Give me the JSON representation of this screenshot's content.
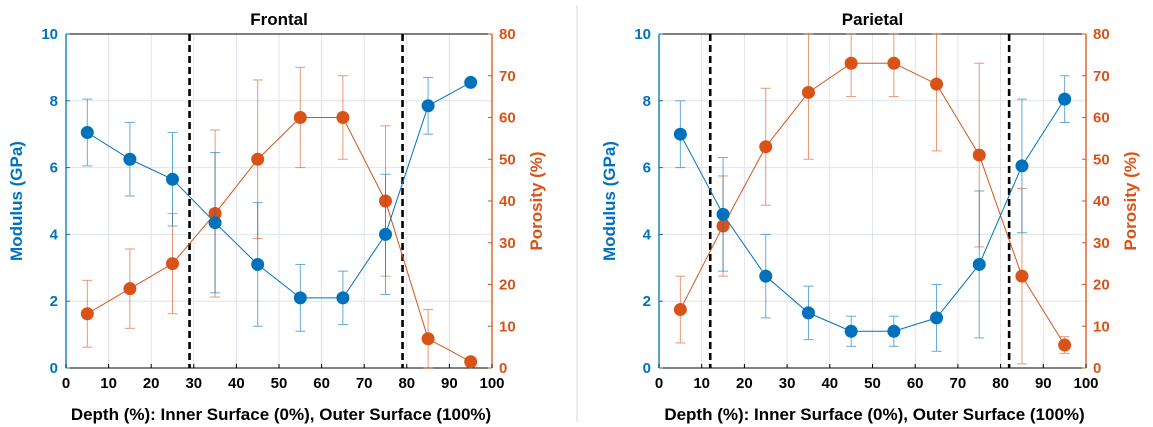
{
  "colors": {
    "modulus": "#0072BD",
    "porosity": "#D95319",
    "axis": "#000000",
    "grid": "#dfe4ea",
    "separator": "#d9d9d9"
  },
  "chart_data": [
    {
      "type": "line",
      "title": "Frontal",
      "xlabel": "Depth (%): Inner Surface (0%), Outer Surface (100%)",
      "ylabel_left": "Modulus (GPa)",
      "ylabel_right": "Porosity (%)",
      "xlim": [
        0,
        100
      ],
      "ylim_left": [
        0,
        10
      ],
      "ylim_right": [
        0,
        80
      ],
      "x_ticks": [
        0,
        10,
        20,
        30,
        40,
        50,
        60,
        70,
        80,
        90,
        100
      ],
      "y_ticks_left": [
        0,
        2,
        4,
        6,
        8,
        10
      ],
      "y_ticks_right": [
        0,
        10,
        20,
        30,
        40,
        50,
        60,
        70,
        80
      ],
      "grid": true,
      "vlines": [
        29,
        79
      ],
      "series": [
        {
          "name": "Modulus (GPa)",
          "axis": "left",
          "x": [
            5,
            15,
            25,
            35,
            45,
            55,
            65,
            75,
            85,
            95
          ],
          "values": [
            7.05,
            6.25,
            5.65,
            4.35,
            3.1,
            2.1,
            2.1,
            4.0,
            7.85,
            8.55
          ],
          "err": [
            1.0,
            1.1,
            1.4,
            2.1,
            1.85,
            1.0,
            0.8,
            1.8,
            0.85,
            0
          ]
        },
        {
          "name": "Porosity (%)",
          "axis": "right",
          "x": [
            5,
            15,
            25,
            35,
            45,
            55,
            65,
            75,
            85,
            95
          ],
          "values": [
            13,
            19,
            25,
            37,
            50,
            60,
            60,
            40,
            7,
            1.5
          ],
          "err": [
            8,
            9.5,
            12,
            20,
            19,
            12,
            10,
            18,
            7,
            0
          ]
        }
      ]
    },
    {
      "type": "line",
      "title": "Parietal",
      "xlabel": "Depth (%): Inner Surface (0%), Outer Surface (100%)",
      "ylabel_left": "Modulus (GPa)",
      "ylabel_right": "Porosity (%)",
      "xlim": [
        0,
        100
      ],
      "ylim_left": [
        0,
        10
      ],
      "ylim_right": [
        0,
        80
      ],
      "x_ticks": [
        0,
        10,
        20,
        30,
        40,
        50,
        60,
        70,
        80,
        90,
        100
      ],
      "y_ticks_left": [
        0,
        2,
        4,
        6,
        8,
        10
      ],
      "y_ticks_right": [
        0,
        10,
        20,
        30,
        40,
        50,
        60,
        70,
        80
      ],
      "grid": true,
      "vlines": [
        12,
        82
      ],
      "series": [
        {
          "name": "Modulus (GPa)",
          "axis": "left",
          "x": [
            5,
            15,
            25,
            35,
            45,
            55,
            65,
            75,
            85,
            95
          ],
          "values": [
            7.0,
            4.6,
            2.75,
            1.65,
            1.1,
            1.1,
            1.5,
            3.1,
            6.05,
            8.05
          ],
          "err": [
            1.0,
            1.7,
            1.25,
            0.8,
            0.45,
            0.45,
            1.0,
            2.2,
            2.0,
            0.7
          ]
        },
        {
          "name": "Porosity (%)",
          "axis": "right",
          "x": [
            5,
            15,
            25,
            35,
            45,
            55,
            65,
            75,
            85,
            95
          ],
          "values": [
            14,
            34,
            53,
            66,
            73,
            73,
            68,
            51,
            22,
            5.5
          ],
          "err": [
            8,
            12,
            14,
            16,
            8,
            8,
            16,
            22,
            21,
            2
          ]
        }
      ]
    }
  ]
}
